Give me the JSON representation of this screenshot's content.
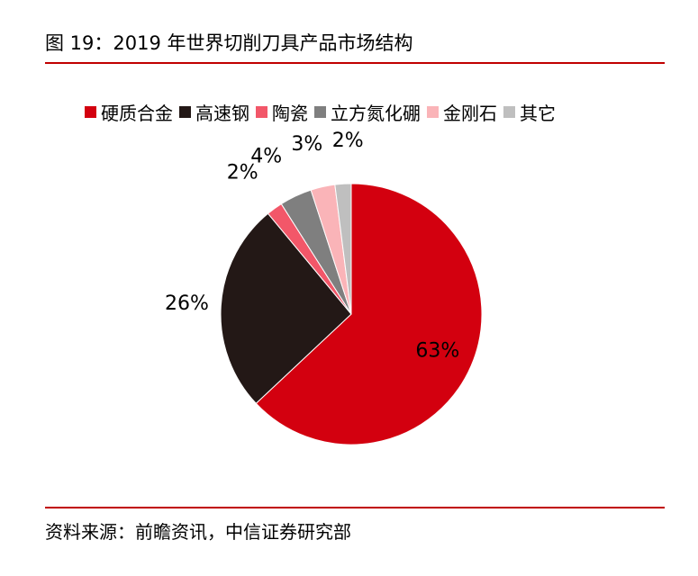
{
  "figure": {
    "title": "图 19：2019 年世界切削刀具产品市场结构",
    "source": "资料来源：前瞻资讯，中信证券研究部"
  },
  "chart_data": {
    "type": "pie",
    "title": "",
    "legend_position": "top",
    "start": "12 o'clock, clockwise",
    "slices": [
      {
        "label": "硬质合金",
        "value": 63,
        "value_label": "63%",
        "color": "#d3000f"
      },
      {
        "label": "高速钢",
        "value": 26,
        "value_label": "26%",
        "color": "#231816"
      },
      {
        "label": "陶瓷",
        "value": 2,
        "value_label": "2%",
        "color": "#f25769"
      },
      {
        "label": "立方氮化硼",
        "value": 4,
        "value_label": "4%",
        "color": "#7f7f7f"
      },
      {
        "label": "金刚石",
        "value": 3,
        "value_label": "3%",
        "color": "#fab4b8"
      },
      {
        "label": "其它",
        "value": 2,
        "value_label": "2%",
        "color": "#bfbfbf"
      }
    ]
  }
}
